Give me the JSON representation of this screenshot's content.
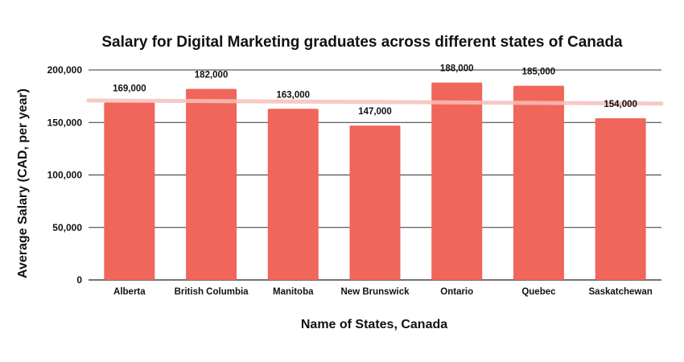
{
  "chart_data": {
    "type": "bar",
    "title": "Salary for Digital Marketing graduates across different states of Canada",
    "xlabel": "Name of States, Canada",
    "ylabel": "Average Salary (CAD, per year)",
    "categories": [
      "Alberta",
      "British Columbia",
      "Manitoba",
      "New Brunswick",
      "Ontario",
      "Quebec",
      "Saskatchewan"
    ],
    "values": [
      169000,
      182000,
      163000,
      147000,
      188000,
      185000,
      154000
    ],
    "data_labels": [
      "169,000",
      "182,000",
      "163,000",
      "147,000",
      "188,000",
      "185,000",
      "154,000"
    ],
    "y_ticks": [
      0,
      50000,
      100000,
      150000,
      200000
    ],
    "y_tick_labels": [
      "0",
      "50,000",
      "100,000",
      "150,000",
      "200,000"
    ],
    "ylim": [
      0,
      200000
    ],
    "trendline": {
      "start": 171000,
      "end": 168000,
      "color": "#f7c0ba"
    },
    "grid": true,
    "legend": "none",
    "bar_color": "#f0665a"
  }
}
